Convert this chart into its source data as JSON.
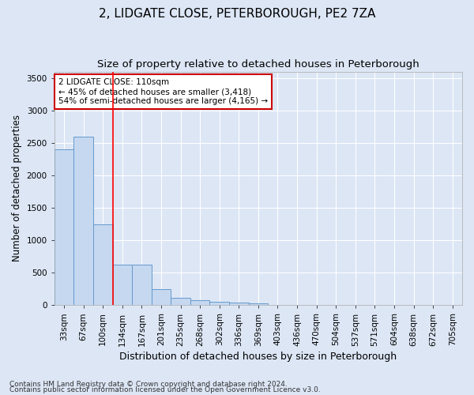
{
  "title": "2, LIDGATE CLOSE, PETERBOROUGH, PE2 7ZA",
  "subtitle": "Size of property relative to detached houses in Peterborough",
  "xlabel": "Distribution of detached houses by size in Peterborough",
  "ylabel": "Number of detached properties",
  "categories": [
    "33sqm",
    "67sqm",
    "100sqm",
    "134sqm",
    "167sqm",
    "201sqm",
    "235sqm",
    "268sqm",
    "302sqm",
    "336sqm",
    "369sqm",
    "403sqm",
    "436sqm",
    "470sqm",
    "504sqm",
    "537sqm",
    "571sqm",
    "604sqm",
    "638sqm",
    "672sqm",
    "705sqm"
  ],
  "values": [
    2400,
    2600,
    1250,
    630,
    620,
    250,
    110,
    75,
    55,
    40,
    30,
    0,
    0,
    0,
    0,
    0,
    0,
    0,
    0,
    0,
    0
  ],
  "bar_color": "#c5d8f0",
  "bar_edgecolor": "#6699cc",
  "red_line_x": 2.5,
  "ylim": [
    0,
    3600
  ],
  "yticks": [
    0,
    500,
    1000,
    1500,
    2000,
    2500,
    3000,
    3500
  ],
  "annotation_text": "2 LIDGATE CLOSE: 110sqm\n← 45% of detached houses are smaller (3,418)\n54% of semi-detached houses are larger (4,165) →",
  "annotation_box_facecolor": "#ffffff",
  "annotation_box_edgecolor": "#cc0000",
  "footnote1": "Contains HM Land Registry data © Crown copyright and database right 2024.",
  "footnote2": "Contains public sector information licensed under the Open Government Licence v3.0.",
  "background_color": "#dce6f5",
  "plot_background": "#dce6f5",
  "grid_color": "#ffffff",
  "title_fontsize": 11,
  "subtitle_fontsize": 9.5,
  "xlabel_fontsize": 9,
  "ylabel_fontsize": 8.5,
  "tick_fontsize": 7.5,
  "annotation_fontsize": 7.5,
  "footnote_fontsize": 6.5
}
